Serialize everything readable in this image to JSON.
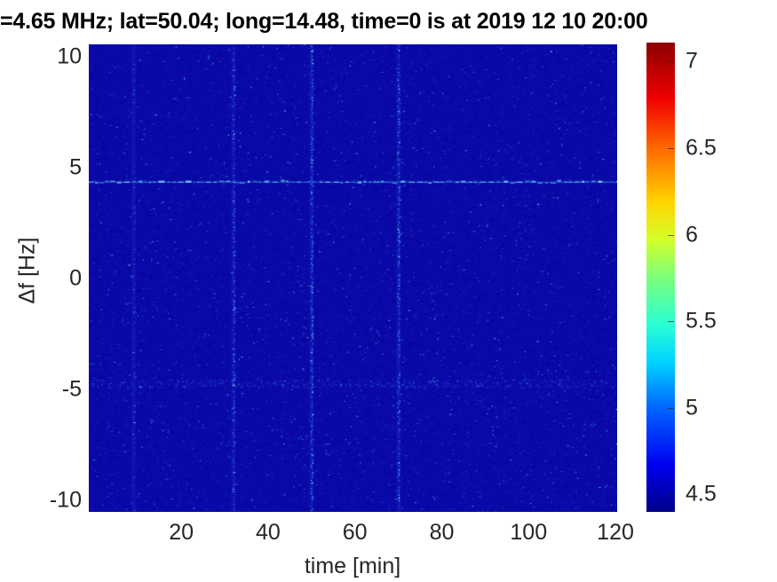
{
  "title": "=4.65 MHz;  lat=50.04; long=14.48, time=0 is at 2019 12 10 20:00",
  "chart_data": {
    "type": "heatmap",
    "title": "=4.65 MHz;  lat=50.04; long=14.48, time=0 is at 2019 12 10 20:00",
    "xlabel": "time [min]",
    "ylabel": "Δf [Hz]",
    "x_ticks": [
      20,
      40,
      60,
      80,
      100,
      120
    ],
    "y_ticks": [
      10,
      5,
      0,
      -5,
      -10
    ],
    "xlim": [
      -1.3,
      120.4
    ],
    "ylim": [
      -10.54,
      10.54
    ],
    "grid": false,
    "colorbar": {
      "ticks": [
        7,
        6.5,
        6,
        5.5,
        5,
        4.5
      ],
      "min": 4.4,
      "max": 7.11,
      "colormap": "jet"
    },
    "background_level": 4.45,
    "features": {
      "horizontal_line": {
        "freq_hz": 4.35,
        "level": "bright cyan dashed, spans full time range"
      },
      "mirror_band": {
        "freq_hz": -4.75,
        "level": "faint elevated noise band"
      },
      "vertical_lines": [
        {
          "time_min": 32,
          "strength": 0.55
        },
        {
          "time_min": 50,
          "strength": 0.8
        },
        {
          "time_min": 70,
          "strength": 0.7
        }
      ],
      "faint_vertical_lines": [
        {
          "time_min": 9,
          "strength": 0.16
        }
      ]
    },
    "colors": {
      "background": "#0a08a6",
      "speckle": [
        "#1720c0",
        "#2b3bd8",
        "#3f6ae8",
        "#35a8e8",
        "#55e0f0",
        "#aef4f8"
      ],
      "line_bright": [
        "#59d0f2",
        "#86ecf5",
        "#2e7fe0",
        "#b0f8f8"
      ],
      "tick_text": "#262626",
      "title_text": "#000000"
    }
  }
}
